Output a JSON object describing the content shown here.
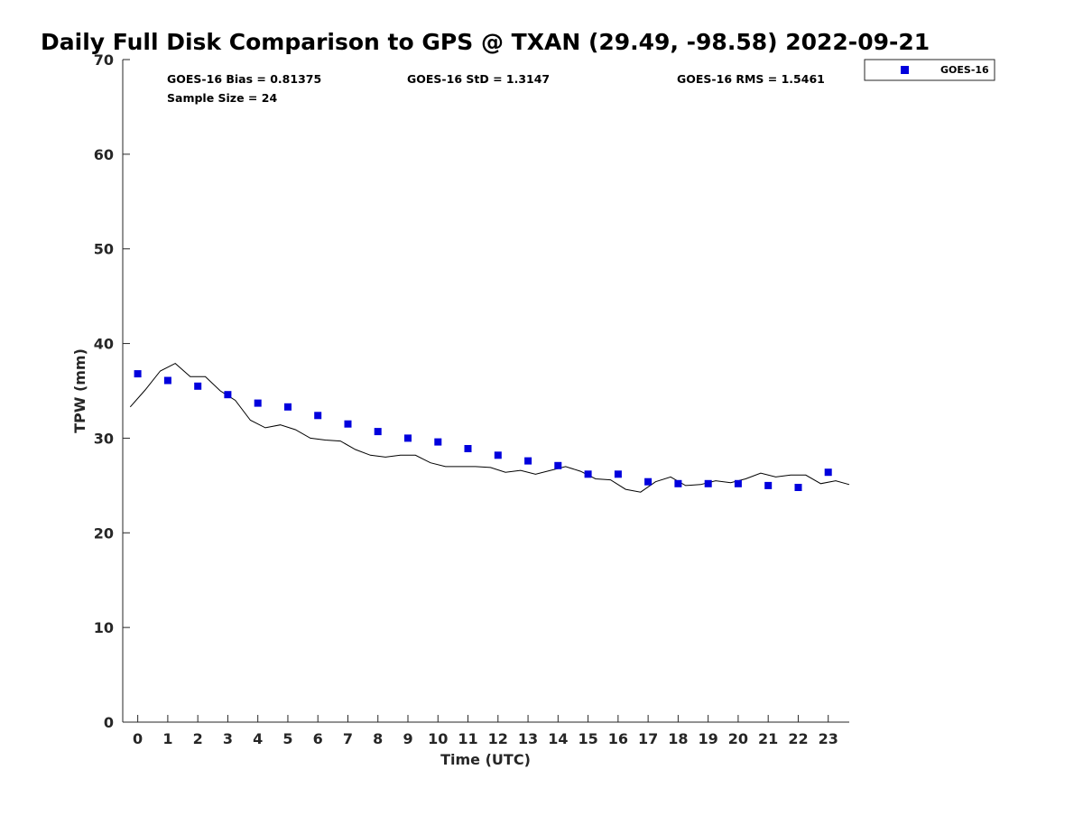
{
  "colors": {
    "goes16": "#0000dd",
    "gps_line": "#000000",
    "axis": "#262626",
    "background": "#ffffff"
  },
  "chart_data": {
    "type": "scatter",
    "title": "Daily Full Disk Comparison to GPS @ TXAN (29.49, -98.58) 2022-09-21",
    "xlabel": "Time (UTC)",
    "ylabel": "TPW (mm)",
    "xlim": [
      -0.5,
      23.7
    ],
    "ylim": [
      0,
      70
    ],
    "x_ticks": [
      0,
      1,
      2,
      3,
      4,
      5,
      6,
      7,
      8,
      9,
      10,
      11,
      12,
      13,
      14,
      15,
      16,
      17,
      18,
      19,
      20,
      21,
      22,
      23
    ],
    "y_ticks": [
      0,
      10,
      20,
      30,
      40,
      50,
      60,
      70
    ],
    "grid": false,
    "legend_placement": "top-right, outside",
    "stats": {
      "bias": "GOES-16 Bias = 0.81375",
      "std": "GOES-16 StD = 1.3147",
      "rms": "GOES-16 RMS = 1.5461",
      "sample_size": "Sample Size = 24"
    },
    "series": [
      {
        "name": "GOES-16",
        "kind": "scatter",
        "marker": "square",
        "x": [
          0,
          1,
          2,
          3,
          4,
          5,
          6,
          7,
          8,
          9,
          10,
          11,
          12,
          13,
          14,
          15,
          16,
          17,
          18,
          19,
          20,
          21,
          22,
          23
        ],
        "y": [
          36.8,
          36.1,
          35.5,
          34.6,
          33.7,
          33.3,
          32.4,
          31.5,
          30.7,
          30.0,
          29.6,
          28.9,
          28.2,
          27.6,
          27.1,
          26.2,
          26.2,
          25.4,
          25.2,
          25.2,
          25.2,
          25.0,
          24.8,
          26.4
        ]
      },
      {
        "kind": "line",
        "x": [
          -0.25,
          0.25,
          0.75,
          1.25,
          1.75,
          2.25,
          2.75,
          3.25,
          3.75,
          4.25,
          4.75,
          5.25,
          5.75,
          6.25,
          6.75,
          7.25,
          7.75,
          8.25,
          8.75,
          9.25,
          9.75,
          10.25,
          10.75,
          11.25,
          11.75,
          12.25,
          12.75,
          13.25,
          13.75,
          14.25,
          14.75,
          15.25,
          15.75,
          16.25,
          16.75,
          17.25,
          17.75,
          18.25,
          18.75,
          19.25,
          19.75,
          20.25,
          20.75,
          21.25,
          21.75,
          22.25,
          22.75,
          23.25,
          23.7
        ],
        "y": [
          33.3,
          35.1,
          37.1,
          37.9,
          36.5,
          36.5,
          35.0,
          34.0,
          31.9,
          31.1,
          31.4,
          30.9,
          30.0,
          29.8,
          29.7,
          28.8,
          28.2,
          28.0,
          28.2,
          28.2,
          27.4,
          27.0,
          27.0,
          27.0,
          26.9,
          26.4,
          26.6,
          26.2,
          26.6,
          27.0,
          26.5,
          25.7,
          25.6,
          24.6,
          24.3,
          25.4,
          25.9,
          25.0,
          25.1,
          25.5,
          25.3,
          25.7,
          26.3,
          25.9,
          26.1,
          26.1,
          25.2,
          25.5,
          25.1
        ]
      }
    ]
  }
}
